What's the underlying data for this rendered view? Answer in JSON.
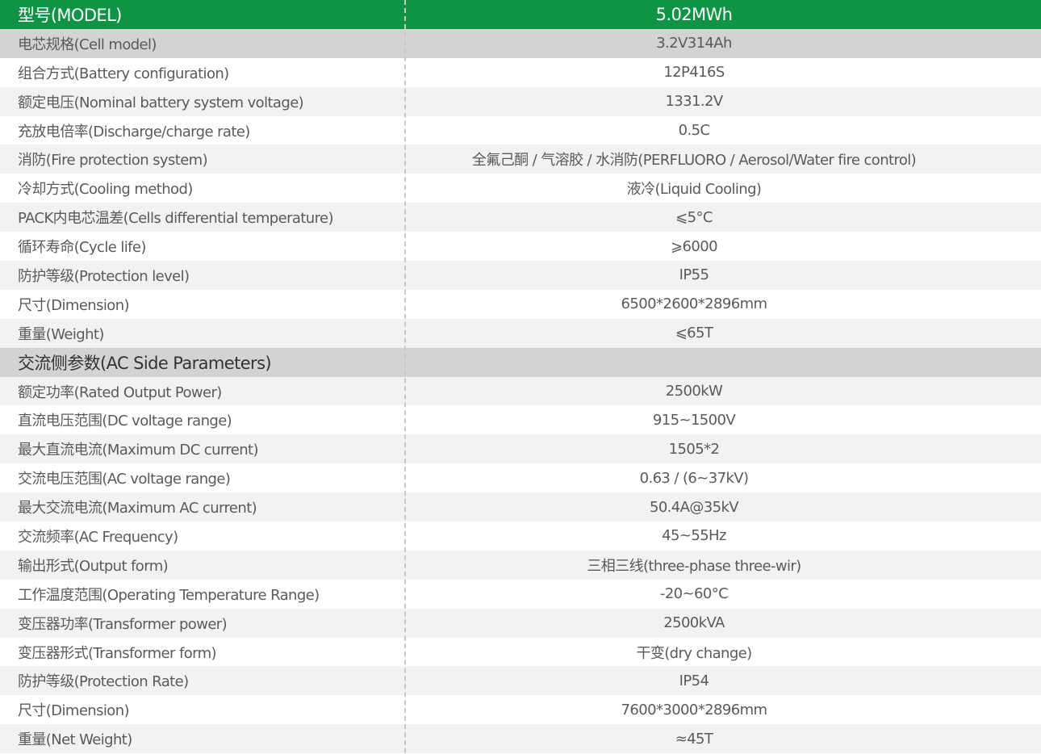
{
  "header": {
    "label": "型号(MODEL)",
    "value": "5.02MWh",
    "color": "#0f9446"
  },
  "battery_rows": [
    {
      "label": "电芯规格(Cell model)",
      "value": "3.2V314Ah"
    },
    {
      "label": "组合方式(Battery configuration)",
      "value": "12P416S"
    },
    {
      "label": "额定电压(Nominal battery system voltage)",
      "value": "1331.2V"
    },
    {
      "label": "充放电倍率(Discharge/charge rate)",
      "value": "0.5C"
    },
    {
      "label": "消防(Fire protection system)",
      "value": "全氟己酮 / 气溶胶 / 水消防(PERFLUORO / Aerosol/Water fire control)"
    },
    {
      "label": "冷却方式(Cooling method)",
      "value": "液冷(Liquid Cooling)"
    },
    {
      "label": "PACK内电芯温差(Cells differential temperature)",
      "value": "⩽5°C"
    },
    {
      "label": "循环寿命(Cycle life)",
      "value": "⩾6000"
    },
    {
      "label": "防护等级(Protection level)",
      "value": "IP55"
    },
    {
      "label": "尺寸(Dimension)",
      "value": "6500*2600*2896mm"
    },
    {
      "label": "重量(Weight)",
      "value": "⩽65T"
    }
  ],
  "ac_section": {
    "label": "交流侧参数(AC Side Parameters)"
  },
  "ac_rows": [
    {
      "label": "额定功率(Rated Output Power)",
      "value": "2500kW"
    },
    {
      "label": "直流电压范围(DC voltage range)",
      "value": "915~1500V"
    },
    {
      "label": "最大直流电流(Maximum DC current)",
      "value": "1505*2"
    },
    {
      "label": "交流电压范围(AC voltage range)",
      "value": "0.63 / (6~37kV)"
    },
    {
      "label": "最大交流电流(Maximum AC current)",
      "value": "50.4A@35kV"
    },
    {
      "label": "交流频率(AC Frequency)",
      "value": "45~55Hz"
    },
    {
      "label": "输出形式(Output form)",
      "value": "三相三线(three-phase three-wir)"
    },
    {
      "label": "工作温度范围(Operating Temperature Range)",
      "value": "-20~60°C"
    },
    {
      "label": "变压器功率(Transformer power)",
      "value": "2500kVA"
    },
    {
      "label": "变压器形式(Transformer form)",
      "value": "干变(dry change)"
    },
    {
      "label": "防护等级(Protection Rate)",
      "value": "IP54"
    },
    {
      "label": "尺寸(Dimension)",
      "value": "7600*3000*2896mm"
    },
    {
      "label": "重量(Net Weight)",
      "value": "≈45T"
    }
  ]
}
